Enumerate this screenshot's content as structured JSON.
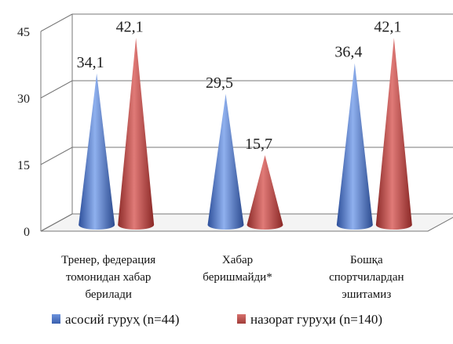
{
  "chart_data": {
    "type": "bar",
    "style": "3d-cone",
    "categories": [
      [
        "Тренер, федерация",
        "томонидан хабар",
        "берилади"
      ],
      [
        "Хабар",
        "беришмайди*"
      ],
      [
        "Бошқа",
        "спортчилардан",
        "эшитамиз"
      ]
    ],
    "series": [
      {
        "name": "асосий гуруҳ (n=44)",
        "values": [
          34.1,
          29.5,
          36.4
        ],
        "labels": [
          "34,1",
          "29,5",
          "36,4"
        ],
        "color": "#4a72c4"
      },
      {
        "name": "назорат гуруҳи (n=140)",
        "values": [
          42.1,
          15.7,
          42.1
        ],
        "labels": [
          "42,1",
          "15,7",
          "42,1"
        ],
        "color": "#c0504d"
      }
    ],
    "yticks": [
      "0",
      "15",
      "30",
      "45"
    ],
    "ylim": [
      0,
      45
    ],
    "grid": true,
    "legend_position": "bottom"
  }
}
